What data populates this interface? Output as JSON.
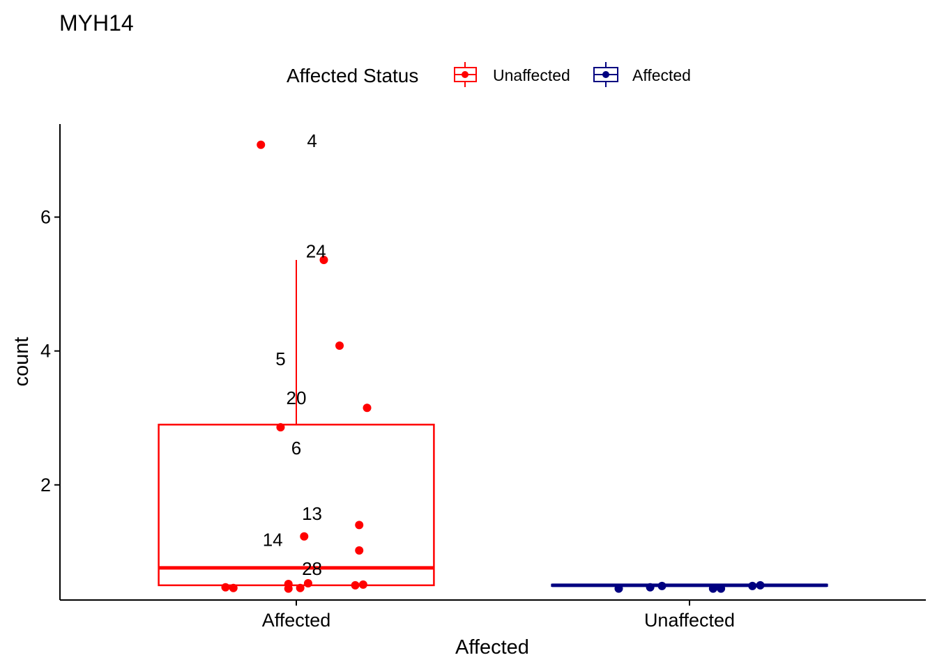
{
  "chart_data": {
    "type": "box",
    "title": "MYH14",
    "xlabel": "Affected",
    "ylabel": "count",
    "categories": [
      "Affected",
      "Unaffected"
    ],
    "ylim": [
      0.28,
      7.39
    ],
    "yticks": [
      2,
      4,
      6
    ],
    "grid": false,
    "legend": {
      "title": "Affected Status",
      "position": "top",
      "entries": [
        {
          "label": "Unaffected",
          "color": "#ff0000"
        },
        {
          "label": "Affected",
          "color": "#000080"
        }
      ]
    },
    "series": [
      {
        "name": "Unaffected",
        "color": "#ff0000",
        "category": "Affected",
        "box": {
          "q1": 0.5,
          "median": 0.76,
          "q3": 2.9,
          "whisker_low": 0.5,
          "whisker_high": 5.36
        },
        "points": [
          {
            "x": -0.18,
            "y": 0.47
          },
          {
            "x": -0.16,
            "y": 0.46
          },
          {
            "x": -0.09,
            "y": 7.08
          },
          {
            "x": -0.04,
            "y": 2.86
          },
          {
            "x": -0.02,
            "y": 0.52
          },
          {
            "x": -0.02,
            "y": 0.45
          },
          {
            "x": 0.01,
            "y": 0.46
          },
          {
            "x": 0.02,
            "y": 1.23
          },
          {
            "x": 0.03,
            "y": 0.53
          },
          {
            "x": 0.07,
            "y": 5.36
          },
          {
            "x": 0.11,
            "y": 4.08
          },
          {
            "x": 0.15,
            "y": 0.5
          },
          {
            "x": 0.16,
            "y": 1.4
          },
          {
            "x": 0.16,
            "y": 1.02
          },
          {
            "x": 0.17,
            "y": 0.51
          },
          {
            "x": 0.18,
            "y": 3.15
          }
        ]
      },
      {
        "name": "Affected",
        "color": "#000080",
        "category": "Unaffected",
        "box": {
          "q1": 0.49,
          "median": 0.5,
          "q3": 0.51,
          "whisker_low": 0.49,
          "whisker_high": 0.51
        },
        "points": [
          {
            "x": -0.18,
            "y": 0.45
          },
          {
            "x": -0.1,
            "y": 0.47
          },
          {
            "x": -0.07,
            "y": 0.49
          },
          {
            "x": 0.06,
            "y": 0.45
          },
          {
            "x": 0.08,
            "y": 0.45
          },
          {
            "x": 0.16,
            "y": 0.49
          },
          {
            "x": 0.18,
            "y": 0.5
          }
        ]
      }
    ],
    "annotations": [
      {
        "text": "4",
        "category": "Affected",
        "x": 0.04,
        "y": 7.14
      },
      {
        "text": "24",
        "category": "Affected",
        "x": 0.05,
        "y": 5.49
      },
      {
        "text": "5",
        "category": "Affected",
        "x": -0.04,
        "y": 3.88
      },
      {
        "text": "20",
        "category": "Affected",
        "x": 0.0,
        "y": 3.3
      },
      {
        "text": "6",
        "category": "Affected",
        "x": 0.0,
        "y": 2.55
      },
      {
        "text": "13",
        "category": "Affected",
        "x": 0.04,
        "y": 1.57
      },
      {
        "text": "14",
        "category": "Affected",
        "x": -0.06,
        "y": 1.18
      },
      {
        "text": "28",
        "category": "Affected",
        "x": 0.04,
        "y": 0.75
      }
    ]
  }
}
